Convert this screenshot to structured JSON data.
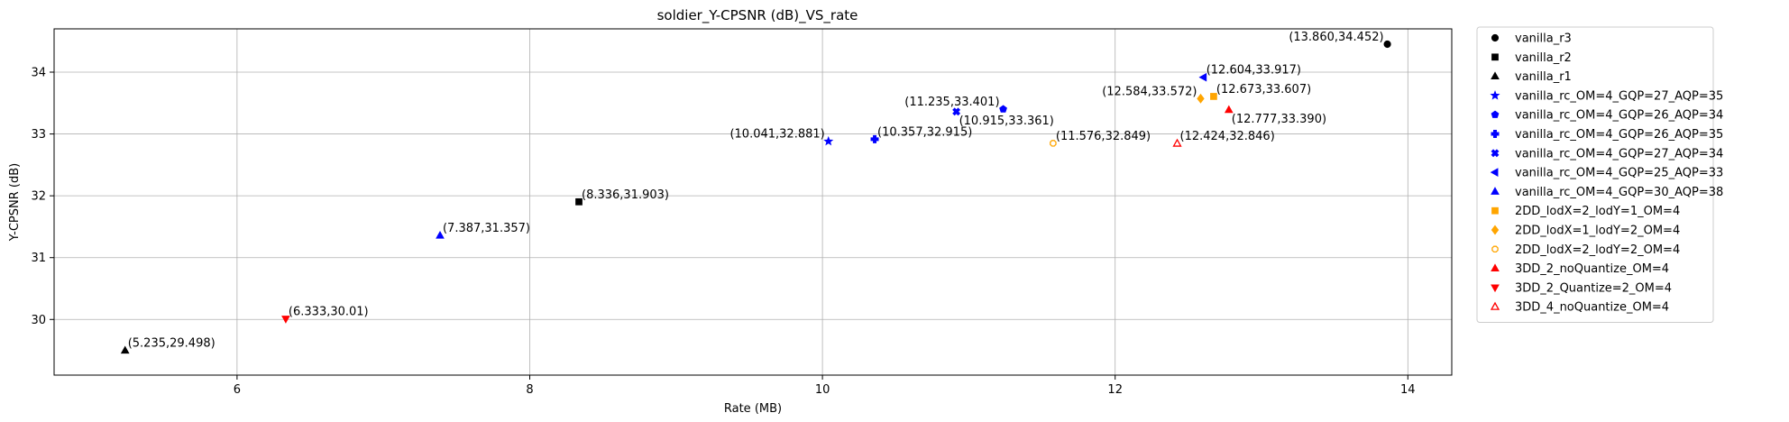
{
  "chart_data": {
    "type": "scatter",
    "title": "soldier_Y-CPSNR (dB)_VS_rate",
    "xlabel": "Rate (MB)",
    "ylabel": "Y-CPSNR (dB)",
    "xlim": [
      4.75,
      14.3
    ],
    "ylim": [
      29.1,
      34.7
    ],
    "xticks": [
      6,
      8,
      10,
      12,
      14
    ],
    "yticks": [
      30,
      31,
      32,
      33,
      34
    ],
    "grid": true,
    "legend_position": "outside-right",
    "series": [
      {
        "name": "vanilla_r3",
        "marker": "circle",
        "color": "#000000",
        "filled": true,
        "x": 13.86,
        "y": 34.452,
        "label": "(13.860,34.452)",
        "label_side": "left"
      },
      {
        "name": "vanilla_r2",
        "marker": "square",
        "color": "#000000",
        "filled": true,
        "x": 8.336,
        "y": 31.903,
        "label": "(8.336,31.903)",
        "label_side": "right"
      },
      {
        "name": "vanilla_r1",
        "marker": "triangle-up",
        "color": "#000000",
        "filled": true,
        "x": 5.235,
        "y": 29.498,
        "label": "(5.235,29.498)",
        "label_side": "right"
      },
      {
        "name": "vanilla_rc_OM=4_GQP=27_AQP=35",
        "marker": "star",
        "color": "#0000ff",
        "filled": true,
        "x": 10.041,
        "y": 32.881,
        "label": "(10.041,32.881)",
        "label_side": "left"
      },
      {
        "name": "vanilla_rc_OM=4_GQP=26_AQP=34",
        "marker": "pentagon",
        "color": "#0000ff",
        "filled": true,
        "x": 11.235,
        "y": 33.401,
        "label": "(11.235,33.401)",
        "label_side": "left"
      },
      {
        "name": "vanilla_rc_OM=4_GQP=26_AQP=35",
        "marker": "plus",
        "color": "#0000ff",
        "filled": true,
        "x": 10.357,
        "y": 32.915,
        "label": "(10.357,32.915)",
        "label_side": "right"
      },
      {
        "name": "vanilla_rc_OM=4_GQP=27_AQP=34",
        "marker": "x",
        "color": "#0000ff",
        "filled": true,
        "x": 10.915,
        "y": 33.361,
        "label": "(10.915,33.361)",
        "label_side": "below-right"
      },
      {
        "name": "vanilla_rc_OM=4_GQP=25_AQP=33",
        "marker": "triangle-left",
        "color": "#0000ff",
        "filled": true,
        "x": 12.604,
        "y": 33.917,
        "label": "(12.604,33.917)",
        "label_side": "right"
      },
      {
        "name": "vanilla_rc_OM=4_GQP=30_AQP=38",
        "marker": "triangle-up",
        "color": "#0000ff",
        "filled": true,
        "x": 7.387,
        "y": 31.357,
        "label": "(7.387,31.357)",
        "label_side": "right"
      },
      {
        "name": "2DD_lodX=2_lodY=1_OM=4",
        "marker": "square",
        "color": "#ffa500",
        "filled": true,
        "x": 12.673,
        "y": 33.607,
        "label": "(12.673,33.607)",
        "label_side": "right"
      },
      {
        "name": "2DD_lodX=1_lodY=2_OM=4",
        "marker": "diamond",
        "color": "#ffa500",
        "filled": true,
        "x": 12.584,
        "y": 33.572,
        "label": "(12.584,33.572)",
        "label_side": "left"
      },
      {
        "name": "2DD_lodX=2_lodY=2_OM=4",
        "marker": "octagon",
        "color": "#ffa500",
        "filled": false,
        "x": 11.576,
        "y": 32.849,
        "label": "(11.576,32.849)",
        "label_side": "right"
      },
      {
        "name": "3DD_2_noQuantize_OM=4",
        "marker": "triangle-up",
        "color": "#ff0000",
        "filled": true,
        "x": 12.777,
        "y": 33.39,
        "label": "(12.777,33.390)",
        "label_side": "below-right"
      },
      {
        "name": "3DD_2_Quantize=2_OM=4",
        "marker": "triangle-down",
        "color": "#ff0000",
        "filled": true,
        "x": 6.333,
        "y": 30.01,
        "label": "(6.333,30.01)",
        "label_side": "right"
      },
      {
        "name": "3DD_4_noQuantize_OM=4",
        "marker": "triangle-up",
        "color": "#ff0000",
        "filled": false,
        "x": 12.424,
        "y": 32.846,
        "label": "(12.424,32.846)",
        "label_side": "right"
      }
    ]
  }
}
